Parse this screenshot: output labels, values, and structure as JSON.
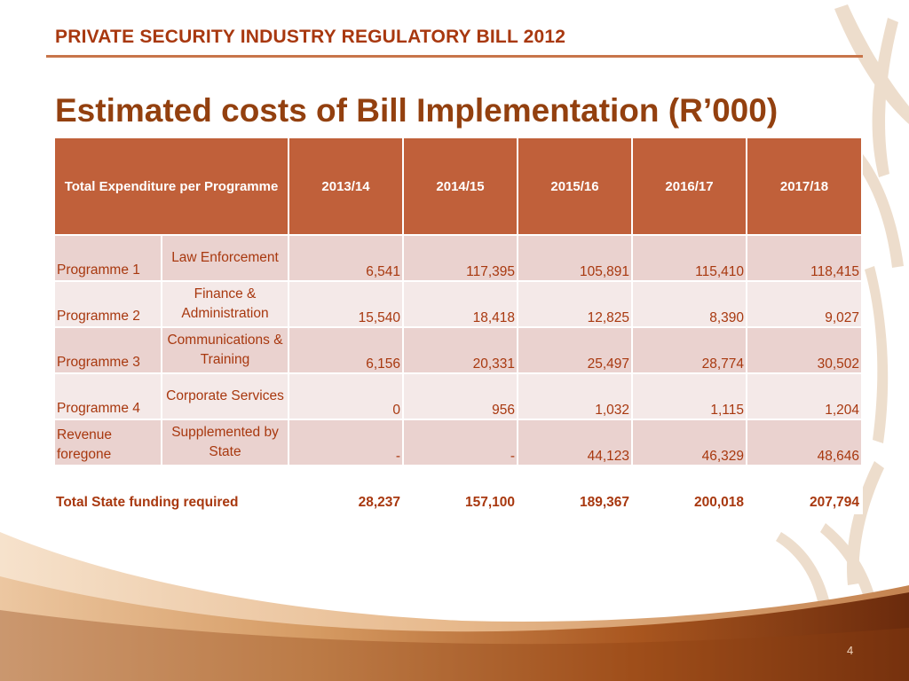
{
  "header": {
    "bill_title": "PRIVATE SECURITY INDUSTRY REGULATORY BILL 2012",
    "slide_title": "Estimated costs of Bill Implementation (R’000)"
  },
  "table": {
    "header_label": "Total Expenditure per Programme",
    "years": [
      "2013/14",
      "2014/15",
      "2015/16",
      "2016/17",
      "2017/18"
    ],
    "rows": [
      {
        "programme": "Programme 1",
        "description": "Law Enforcement",
        "values": [
          "6,541",
          "117,395",
          "105,891",
          "115,410",
          "118,415"
        ]
      },
      {
        "programme": "Programme 2",
        "description": "Finance & Administration",
        "values": [
          "15,540",
          "18,418",
          "12,825",
          "8,390",
          "9,027"
        ]
      },
      {
        "programme": "Programme 3",
        "description": "Communications & Training",
        "values": [
          "6,156",
          "20,331",
          "25,497",
          "28,774",
          "30,502"
        ]
      },
      {
        "programme": "Programme 4",
        "description": "Corporate Services",
        "values": [
          "0",
          "956",
          "1,032",
          "1,115",
          "1,204"
        ]
      },
      {
        "programme": "Revenue foregone",
        "description": "Supplemented by State",
        "values": [
          "-",
          "-",
          "44,123",
          "46,329",
          "48,646"
        ]
      }
    ],
    "total": {
      "label": "Total State funding required",
      "values": [
        "28,237",
        "157,100",
        "189,367",
        "200,018",
        "207,794"
      ]
    }
  },
  "footer": {
    "page_number": "4"
  },
  "colors": {
    "accent": "#a8380f",
    "header_fill": "#c0603a",
    "row_dark": "#ead2cf",
    "row_light": "#f4e9e8"
  }
}
